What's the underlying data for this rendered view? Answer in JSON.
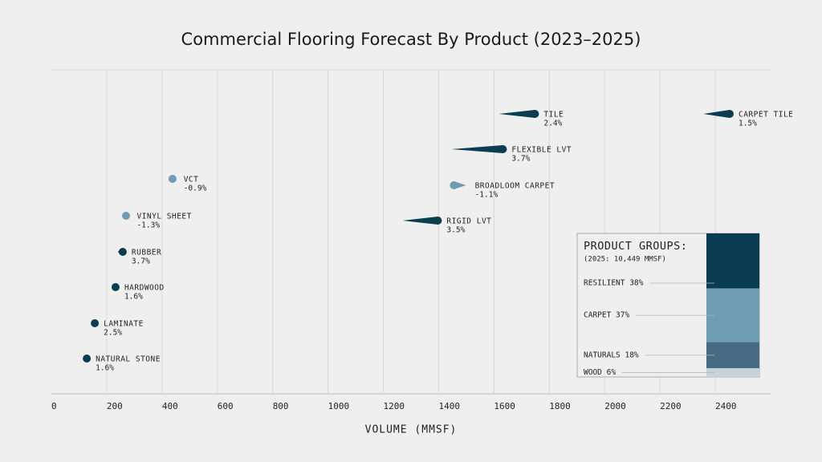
{
  "chart_data": [
    {
      "type": "comet",
      "title": "Commercial Flooring Forecast By Product (2023–2025)",
      "xlabel": "VOLUME (MMSF)",
      "categories": [
        "TILE",
        "CARPET TILE",
        "FLEXIBLE LVT",
        "BROADLOOM CARPET",
        "VCT",
        "VINYL SHEET",
        "RIGID LVT",
        "RUBBER",
        "HARDWOOD",
        "LAMINATE",
        "NATURAL STONE"
      ],
      "start_values": [
        1617,
        2357,
        1446,
        1499,
        446,
        277,
        1270,
        240,
        225,
        150,
        124
      ],
      "end_values": [
        1748,
        2452,
        1632,
        1455,
        438,
        270,
        1397,
        258,
        232,
        157,
        128
      ],
      "values": [
        2.4,
        1.5,
        3.7,
        -1.1,
        -0.9,
        -1.3,
        3.5,
        3.7,
        1.6,
        2.5,
        1.6
      ],
      "value_labels": [
        "2.4%",
        "1.5%",
        "3.7%",
        "-1.1%",
        "-0.9%",
        "-1.3%",
        "3.5%",
        "3.7%",
        "1.6%",
        "2.5%",
        "1.6%"
      ],
      "colors": [
        "#0b3d52",
        "#0b3d52",
        "#0b3d52",
        "#6f9bb3",
        "#6f9bb3",
        "#6f9bb3",
        "#0b3d52",
        "#0b3d52",
        "#0b3d52",
        "#0b3d52",
        "#0b3d52"
      ],
      "xlim": [
        0,
        2600
      ],
      "xticks": [
        0,
        200,
        400,
        600,
        800,
        1000,
        1200,
        1400,
        1600,
        1800,
        2000,
        2200,
        2400
      ],
      "grid": true
    },
    {
      "type": "stacked-bar",
      "title": "PRODUCT GROUPS:",
      "subtitle": "(2025: 10,449 MMSF)",
      "values": [
        38,
        37,
        18,
        6
      ],
      "value_labels": [
        "RESILIENT 38%",
        "CARPET 37%",
        "NATURALS 18%",
        "WOOD 6%"
      ],
      "colors": [
        "#0b3d52",
        "#6f9bb3",
        "#456a82",
        "#c5d3dd"
      ]
    }
  ]
}
